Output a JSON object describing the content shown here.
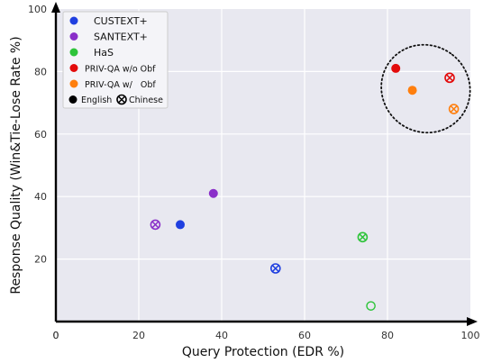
{
  "chart_data": {
    "type": "scatter",
    "title": "",
    "xlabel": "Query Protection (EDR %)",
    "ylabel": "Response Quality (Win&Tie-Lose Rate %)",
    "xlim": [
      0,
      100
    ],
    "ylim": [
      0,
      100
    ],
    "xticks": [
      "0",
      "20",
      "40",
      "60",
      "80",
      "100"
    ],
    "yticks": [
      "20",
      "40",
      "60",
      "80",
      "100"
    ],
    "grid": true,
    "legend_position": "top-left",
    "series": [
      {
        "name": "CUSTEXT+",
        "color": "#1f3fe0",
        "points": [
          {
            "x": 30,
            "y": 31,
            "language": "English"
          },
          {
            "x": 53,
            "y": 17,
            "language": "Chinese"
          }
        ]
      },
      {
        "name": "SANTEXT+",
        "color": "#8a2fc9",
        "points": [
          {
            "x": 38,
            "y": 41,
            "language": "English"
          },
          {
            "x": 24,
            "y": 31,
            "language": "Chinese"
          }
        ]
      },
      {
        "name": "HaS",
        "color": "#2ec43a",
        "points": [
          {
            "x": 76,
            "y": 5,
            "language": "English"
          },
          {
            "x": 74,
            "y": 27,
            "language": "Chinese"
          }
        ]
      },
      {
        "name": "PRIV-QA w/o Obf",
        "color": "#e30b0b",
        "points": [
          {
            "x": 82,
            "y": 81,
            "language": "English"
          },
          {
            "x": 95,
            "y": 78,
            "language": "Chinese"
          }
        ]
      },
      {
        "name": "PRIV-QA w/   Obf",
        "color": "#ff7f0e",
        "points": [
          {
            "x": 86,
            "y": 74,
            "language": "English"
          },
          {
            "x": 96,
            "y": 68,
            "language": "Chinese"
          }
        ]
      }
    ],
    "marker_legend": [
      {
        "label": "English",
        "marker": "filled-circle"
      },
      {
        "label": "Chinese",
        "marker": "circle-x"
      }
    ],
    "annotation": {
      "type": "dotted-ellipse",
      "around": "PRIV-QA points"
    }
  }
}
